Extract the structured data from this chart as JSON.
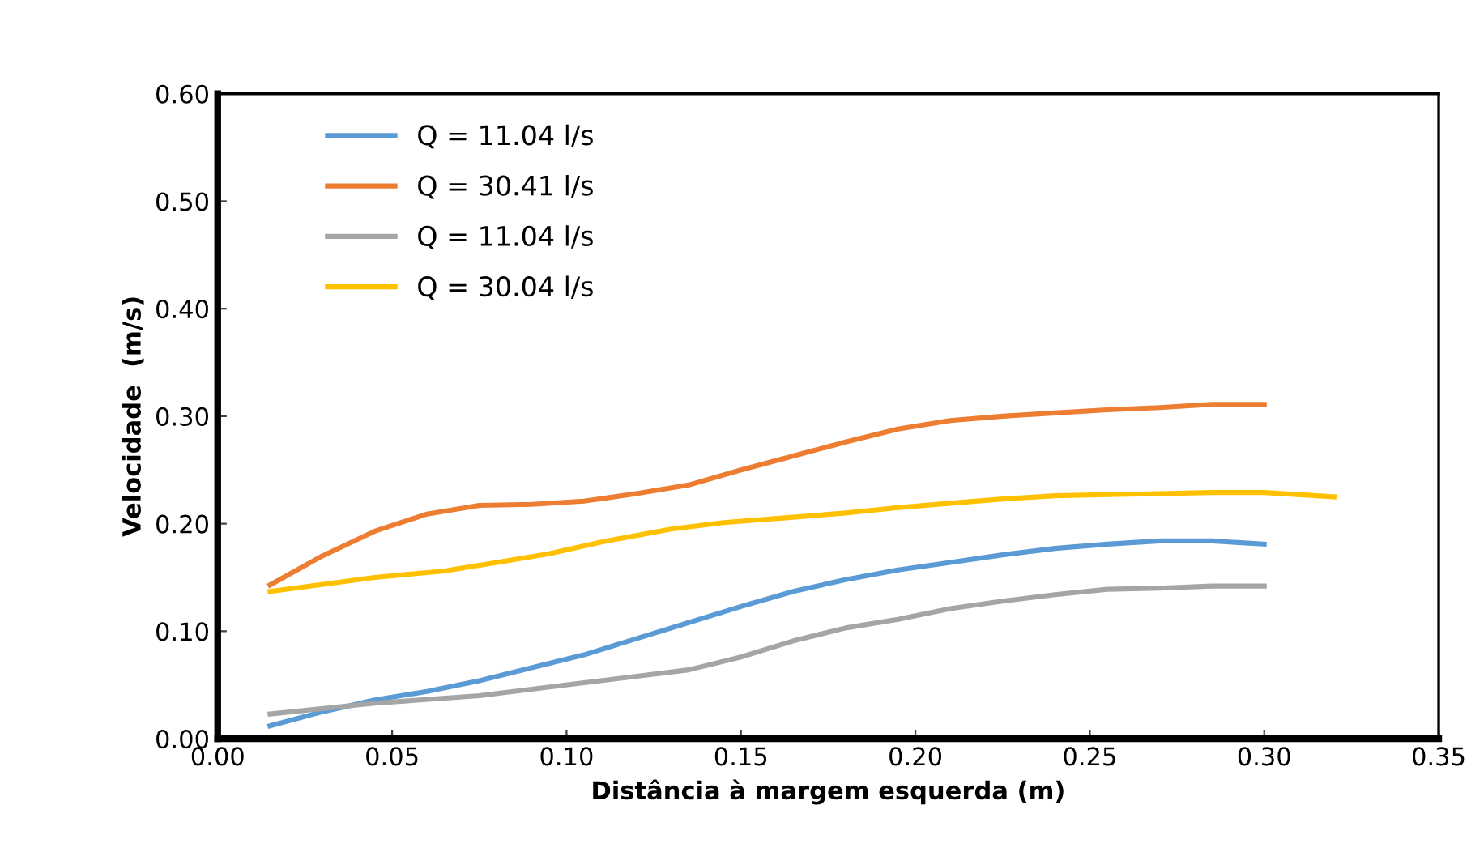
{
  "chart_data": {
    "type": "line",
    "xlabel": "Distância à margem esquerda (m)",
    "ylabel": "Velocidade  (m/s)",
    "xlim": [
      0,
      0.35
    ],
    "xticks": [
      {
        "value": 0,
        "label": "0.00"
      },
      {
        "value": 0.05,
        "label": "0.05"
      },
      {
        "value": 0.1,
        "label": "0.10"
      },
      {
        "value": 0.15,
        "label": "0.15"
      },
      {
        "value": 0.2,
        "label": "0.20"
      },
      {
        "value": 0.25,
        "label": "0.25"
      },
      {
        "value": 0.3,
        "label": "0.30"
      },
      {
        "value": 0.35,
        "label": "0.35"
      }
    ],
    "ylim": [
      0,
      0.6
    ],
    "yticks": [
      {
        "value": 0,
        "label": "0.00"
      },
      {
        "value": 0.1,
        "label": "0.10"
      },
      {
        "value": 0.2,
        "label": "0.20"
      },
      {
        "value": 0.3,
        "label": "0.30"
      },
      {
        "value": 0.4,
        "label": "0.40"
      },
      {
        "value": 0.5,
        "label": "0.50"
      },
      {
        "value": 0.6,
        "label": "0.60"
      }
    ],
    "grid": false,
    "legend": "top left",
    "marker": "none",
    "line_style": "solid",
    "series": [
      {
        "name": "Q = 11.04 l/s",
        "color": "#5b9bd5",
        "x": [
          0.015,
          0.03,
          0.045,
          0.06,
          0.075,
          0.09,
          0.105,
          0.12,
          0.135,
          0.15,
          0.165,
          0.18,
          0.195,
          0.21,
          0.225,
          0.24,
          0.255,
          0.27,
          0.285,
          0.3
        ],
        "values": [
          0.012,
          0.025,
          0.036,
          0.044,
          0.054,
          0.066,
          0.078,
          0.093,
          0.108,
          0.123,
          0.137,
          0.148,
          0.157,
          0.164,
          0.171,
          0.177,
          0.181,
          0.184,
          0.184,
          0.181
        ]
      },
      {
        "name": "Q = 30.41 l/s",
        "color": "#ed7d31",
        "x": [
          0.015,
          0.03,
          0.045,
          0.06,
          0.075,
          0.09,
          0.105,
          0.12,
          0.135,
          0.15,
          0.165,
          0.18,
          0.195,
          0.21,
          0.225,
          0.24,
          0.255,
          0.27,
          0.285,
          0.3
        ],
        "values": [
          0.143,
          0.17,
          0.193,
          0.209,
          0.217,
          0.218,
          0.221,
          0.228,
          0.236,
          0.25,
          0.263,
          0.276,
          0.288,
          0.296,
          0.3,
          0.303,
          0.306,
          0.308,
          0.311,
          0.311
        ]
      },
      {
        "name": "Q = 11.04 l/s",
        "color": "#a5a5a5",
        "x": [
          0.015,
          0.045,
          0.075,
          0.105,
          0.135,
          0.15,
          0.165,
          0.18,
          0.195,
          0.21,
          0.225,
          0.24,
          0.255,
          0.27,
          0.285,
          0.3
        ],
        "values": [
          0.023,
          0.033,
          0.04,
          0.052,
          0.064,
          0.076,
          0.091,
          0.103,
          0.111,
          0.121,
          0.128,
          0.134,
          0.139,
          0.14,
          0.142,
          0.142
        ]
      },
      {
        "name": "Q = 30.04 l/s",
        "color": "#ffc000",
        "x": [
          0.015,
          0.045,
          0.065,
          0.08,
          0.095,
          0.11,
          0.13,
          0.145,
          0.165,
          0.18,
          0.195,
          0.21,
          0.225,
          0.24,
          0.255,
          0.27,
          0.285,
          0.3,
          0.32
        ],
        "values": [
          0.137,
          0.15,
          0.156,
          0.164,
          0.172,
          0.183,
          0.195,
          0.201,
          0.206,
          0.21,
          0.215,
          0.219,
          0.223,
          0.226,
          0.227,
          0.228,
          0.229,
          0.229,
          0.225
        ]
      }
    ]
  }
}
